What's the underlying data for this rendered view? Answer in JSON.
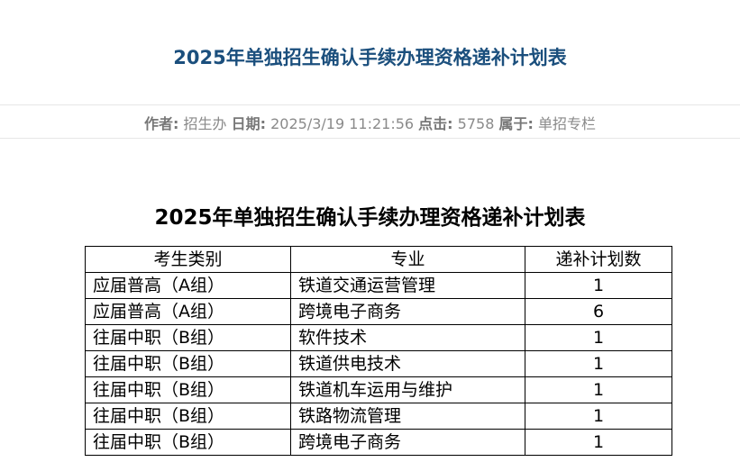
{
  "article": {
    "title": "2025年单独招生确认手续办理资格递补计划表",
    "meta": {
      "author_label": "作者:",
      "author": "招生办",
      "date_label": "日期:",
      "date": "2025/3/19 11:21:56",
      "clicks_label": "点击:",
      "clicks": "5758",
      "category_label": "属于:",
      "category": "单招专栏"
    }
  },
  "content": {
    "heading": "2025年单独招生确认手续办理资格递补计划表",
    "table": {
      "headers": [
        "考生类别",
        "专业",
        "递补计划数"
      ],
      "rows": [
        [
          "应届普高（A组）",
          "铁道交通运营管理",
          "1"
        ],
        [
          "应届普高（A组）",
          "跨境电子商务",
          "6"
        ],
        [
          "往届中职（B组）",
          "软件技术",
          "1"
        ],
        [
          "往届中职（B组）",
          "铁道供电技术",
          "1"
        ],
        [
          "往届中职（B组）",
          "铁道机车运用与维护",
          "1"
        ],
        [
          "往届中职（B组）",
          "铁路物流管理",
          "1"
        ],
        [
          "往届中职（B组）",
          "跨境电子商务",
          "1"
        ]
      ]
    }
  },
  "colors": {
    "title": "#1b4f7d"
  }
}
